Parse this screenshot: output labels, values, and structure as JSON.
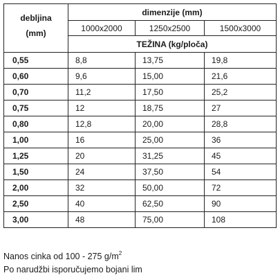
{
  "table": {
    "thickness_header": "debljina",
    "thickness_unit": "(mm)",
    "dimensions_header": "dimenzije  (mm)",
    "sizes": [
      "1000x2000",
      "1250x2500",
      "1500x3000"
    ],
    "weight_header": "TEŽINA (kg/ploča)",
    "rows": [
      {
        "thickness": "0,55",
        "values": [
          "8,8",
          "13,75",
          "19,8"
        ]
      },
      {
        "thickness": "0,60",
        "values": [
          "9,6",
          "15,00",
          "21,6"
        ]
      },
      {
        "thickness": "0,70",
        "values": [
          "11,2",
          "17,50",
          "25,2"
        ]
      },
      {
        "thickness": "0,75",
        "values": [
          "12",
          "18,75",
          "27"
        ]
      },
      {
        "thickness": "0,80",
        "values": [
          "12,8",
          "20,00",
          "28,8"
        ]
      },
      {
        "thickness": "1,00",
        "values": [
          "16",
          "25,00",
          "36"
        ]
      },
      {
        "thickness": "1,25",
        "values": [
          "20",
          "31,25",
          "45"
        ]
      },
      {
        "thickness": "1,50",
        "values": [
          "24",
          "37,50",
          "54"
        ]
      },
      {
        "thickness": "2,00",
        "values": [
          "32",
          "50,00",
          "72"
        ]
      },
      {
        "thickness": "2,50",
        "values": [
          "40",
          "62,50",
          "90"
        ]
      },
      {
        "thickness": "3,00",
        "values": [
          "48",
          "75,00",
          "108"
        ]
      }
    ]
  },
  "notes": {
    "zinc_coating": "Nanos cinka od 100 - 275 g/m",
    "zinc_coating_sup": "2",
    "painted_sheet": "Po narudžbi isporučujemo bojani lim"
  }
}
